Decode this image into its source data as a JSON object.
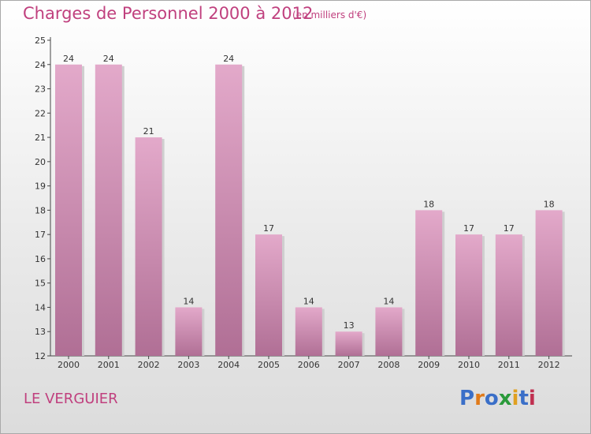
{
  "title": "Charges de Personnel 2000 à 2012",
  "subtitle": "(en milliers d'€)",
  "commune": "LE VERGUIER",
  "logo": {
    "letters": [
      {
        "ch": "P",
        "color": "#3a6fc8"
      },
      {
        "ch": "r",
        "color": "#e07a1a"
      },
      {
        "ch": "o",
        "color": "#3a6fc8"
      },
      {
        "ch": "x",
        "color": "#2a9a3a"
      },
      {
        "ch": "i",
        "color": "#e0a020"
      },
      {
        "ch": "t",
        "color": "#3a6fc8"
      },
      {
        "ch": "i",
        "color": "#c03050"
      }
    ]
  },
  "colors": {
    "bar_top": "#e3a9ca",
    "bar_bottom": "#b06f95",
    "accent": "#c0407e"
  },
  "chart_data": {
    "type": "bar",
    "title": "Charges de Personnel 2000 à 2012",
    "subtitle": "(en milliers d'€)",
    "categories": [
      "2000",
      "2001",
      "2002",
      "2003",
      "2004",
      "2005",
      "2006",
      "2007",
      "2008",
      "2009",
      "2010",
      "2011",
      "2012"
    ],
    "values": [
      24,
      24,
      21,
      14,
      24,
      17,
      14,
      13,
      14,
      18,
      17,
      17,
      18
    ],
    "ylim": [
      12,
      25
    ],
    "yticks": [
      12,
      13,
      14,
      15,
      16,
      17,
      18,
      19,
      20,
      21,
      22,
      23,
      24,
      25
    ],
    "grid": false,
    "legend": "none"
  }
}
